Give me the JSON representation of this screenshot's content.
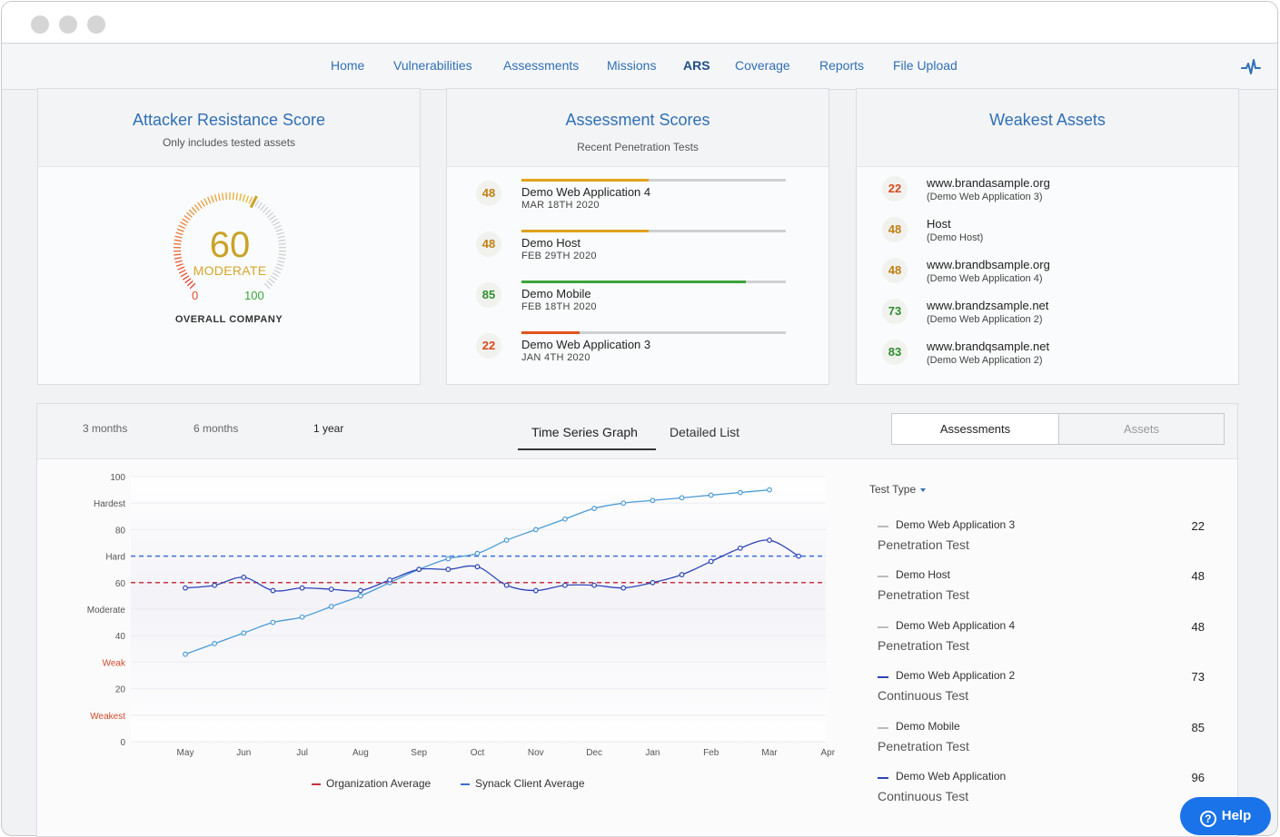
{
  "nav": {
    "items": [
      {
        "label": "Home"
      },
      {
        "label": "Vulnerabilities"
      },
      {
        "label": "Assessments"
      },
      {
        "label": "Missions"
      },
      {
        "label": "ARS"
      },
      {
        "label": "Coverage"
      },
      {
        "label": "Reports"
      },
      {
        "label": "File Upload"
      }
    ],
    "active": "ARS",
    "icon": "activity-pulse-icon"
  },
  "ars_card": {
    "title": "Attacker Resistance Score",
    "subtitle": "Only includes tested assets",
    "score": "60",
    "level": "MODERATE",
    "min": "0",
    "max": "100",
    "label": "OVERALL COMPANY",
    "score_value": 60
  },
  "scores_card": {
    "title": "Assessment Scores",
    "subtitle": "Recent Penetration Tests",
    "rows": [
      {
        "score": "48",
        "name": "Demo Web Application 4",
        "date": "MAR 18TH 2020",
        "color": "#e0a21b",
        "badge_color": "#c07f12"
      },
      {
        "score": "48",
        "name": "Demo Host",
        "date": "FEB 29TH 2020",
        "color": "#e0a21b",
        "badge_color": "#c07f12"
      },
      {
        "score": "85",
        "name": "Demo Mobile",
        "date": "FEB 18TH 2020",
        "color": "#3aa53a",
        "badge_color": "#2f8f2f"
      },
      {
        "score": "22",
        "name": "Demo Web Application 3",
        "date": "JAN 4TH 2020",
        "color": "#e2531f",
        "badge_color": "#d94a1b"
      }
    ]
  },
  "weakest_card": {
    "title": "Weakest Assets",
    "rows": [
      {
        "score": "22",
        "name": "www.brandasample.org",
        "sub": "(Demo Web Application 3)",
        "badge_color": "#d94a1b"
      },
      {
        "score": "48",
        "name": "Host",
        "sub": "(Demo Host)",
        "badge_color": "#c07f12"
      },
      {
        "score": "48",
        "name": "www.brandbsample.org",
        "sub": "(Demo Web Application 4)",
        "badge_color": "#c07f12"
      },
      {
        "score": "73",
        "name": "www.brandzsample.net",
        "sub": "(Demo Web Application 2)",
        "badge_color": "#2f8f2f"
      },
      {
        "score": "83",
        "name": "www.brandqsample.net",
        "sub": "(Demo Web Application 2)",
        "badge_color": "#2f8f2f"
      }
    ]
  },
  "panel": {
    "ranges": [
      "3 months",
      "6 months",
      "1 year"
    ],
    "active_range": "1 year",
    "views": [
      "Time Series Graph",
      "Detailed List"
    ],
    "active_view": "Time Series Graph",
    "toggles": [
      "Assessments",
      "Assets"
    ],
    "active_toggle": "Assessments",
    "filter_label": "Test Type"
  },
  "chart_data": {
    "type": "line",
    "x": [
      "May",
      "Jun",
      "Jul",
      "Aug",
      "Sep",
      "Oct",
      "Nov",
      "Dec",
      "Jan",
      "Feb",
      "Mar",
      "Apr"
    ],
    "y_ticks": [
      "0",
      "20",
      "40",
      "60",
      "80",
      "100"
    ],
    "y_zone_labels": [
      {
        "label": "Weakest",
        "value": 10,
        "color": "#d24b2a"
      },
      {
        "label": "Weak",
        "value": 30,
        "color": "#d24b2a"
      },
      {
        "label": "Moderate",
        "value": 50,
        "color": "#555555"
      },
      {
        "label": "Hard",
        "value": 70,
        "color": "#555555"
      },
      {
        "label": "Hardest",
        "value": 90,
        "color": "#555555"
      }
    ],
    "ylim": [
      0,
      100
    ],
    "grid": true,
    "reference_lines": [
      {
        "name": "Organization Average",
        "value": 60,
        "color": "#c8343f",
        "dashed": true
      },
      {
        "name": "Synack Client Average",
        "value": 70,
        "color": "#3b6fd4",
        "dashed": true
      }
    ],
    "series": [
      {
        "color": "#4b9bd6",
        "points": [
          [
            0.0,
            33
          ],
          [
            0.5,
            37
          ],
          [
            1.0,
            41
          ],
          [
            1.5,
            45
          ],
          [
            2.0,
            47
          ],
          [
            2.5,
            51
          ],
          [
            3.0,
            55
          ],
          [
            3.5,
            60
          ],
          [
            4.0,
            65
          ],
          [
            4.5,
            69
          ],
          [
            5.0,
            71
          ],
          [
            5.5,
            76
          ],
          [
            6.0,
            80
          ],
          [
            6.5,
            84
          ],
          [
            7.0,
            88
          ],
          [
            7.5,
            90
          ],
          [
            8.0,
            91
          ],
          [
            8.5,
            92
          ],
          [
            9.0,
            93
          ],
          [
            9.5,
            94
          ],
          [
            10.0,
            95
          ]
        ]
      },
      {
        "color": "#2e45b8",
        "points": [
          [
            0.0,
            58
          ],
          [
            0.5,
            59
          ],
          [
            1.0,
            62
          ],
          [
            1.5,
            57
          ],
          [
            2.0,
            58
          ],
          [
            2.5,
            57.5
          ],
          [
            3.0,
            57
          ],
          [
            3.5,
            61
          ],
          [
            4.0,
            65
          ],
          [
            4.5,
            65
          ],
          [
            5.0,
            66
          ],
          [
            5.5,
            59
          ],
          [
            6.0,
            57
          ],
          [
            6.5,
            59
          ],
          [
            7.0,
            59
          ],
          [
            7.5,
            58
          ],
          [
            8.0,
            60
          ],
          [
            8.5,
            63
          ],
          [
            9.0,
            68
          ],
          [
            9.5,
            73
          ],
          [
            10.0,
            76
          ],
          [
            10.5,
            70
          ]
        ]
      }
    ]
  },
  "tests": [
    {
      "name": "Demo Web Application 3",
      "type": "Penetration Test",
      "score": "22",
      "line_color": "#bbbbbb"
    },
    {
      "name": "Demo Host",
      "type": "Penetration Test",
      "score": "48",
      "line_color": "#bbbbbb"
    },
    {
      "name": "Demo Web Application 4",
      "type": "Penetration Test",
      "score": "48",
      "line_color": "#bbbbbb"
    },
    {
      "name": "Demo Web Application 2",
      "type": "Continuous Test",
      "score": "73",
      "line_color": "#2e45b8"
    },
    {
      "name": "Demo Mobile",
      "type": "Penetration Test",
      "score": "85",
      "line_color": "#bbbbbb"
    },
    {
      "name": "Demo Web Application",
      "type": "Continuous Test",
      "score": "96",
      "line_color": "#2e45b8"
    }
  ],
  "help": {
    "label": "Help",
    "icon": "question-icon"
  }
}
